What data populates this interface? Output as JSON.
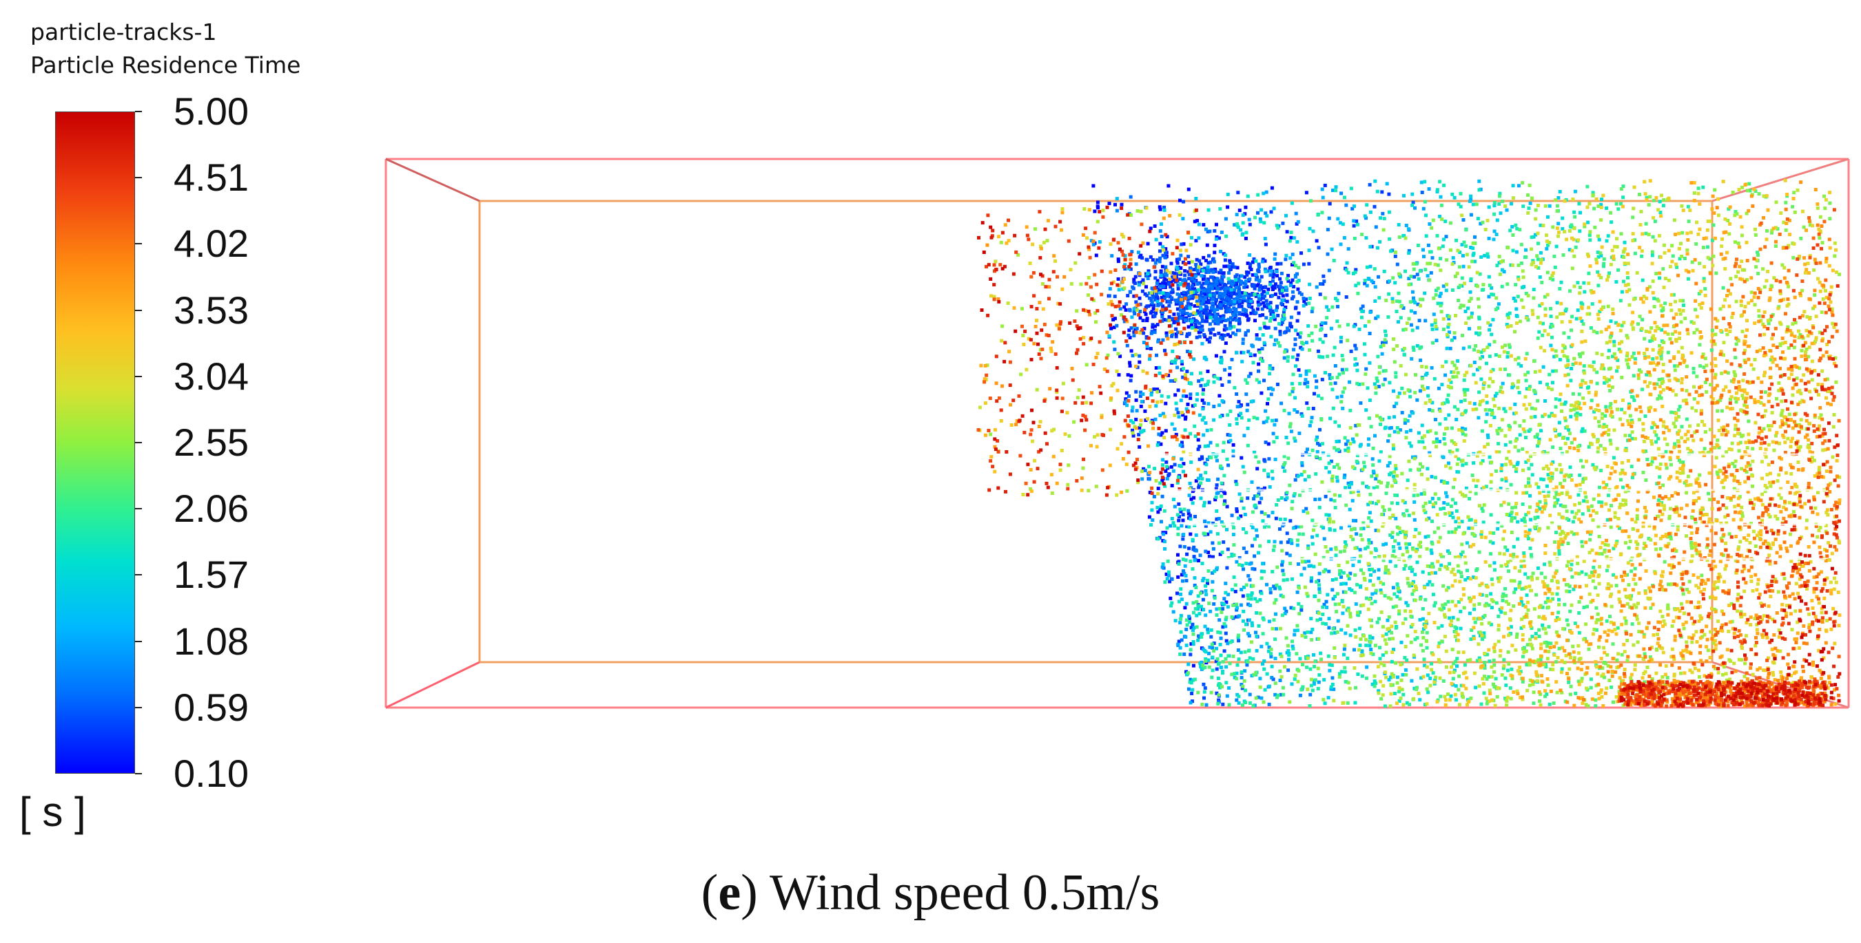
{
  "legend": {
    "title": "particle-tracks-1",
    "variable": "Particle Residence Time",
    "unit": "[ s ]",
    "min": 0.1,
    "max": 5.0,
    "ticks": [
      "5.00",
      "4.51",
      "4.02",
      "3.53",
      "3.04",
      "2.55",
      "2.06",
      "1.57",
      "1.08",
      "0.59",
      "0.10"
    ],
    "colormap_stops": [
      "#0000ff",
      "#0070ff",
      "#00b8ff",
      "#00e0d0",
      "#30f090",
      "#90f040",
      "#d8e030",
      "#ffc020",
      "#ff8a10",
      "#f04010",
      "#c80000"
    ]
  },
  "domain_box": {
    "outer_color": "#ff7f86",
    "inner_color": "#f0a060"
  },
  "caption": {
    "letter": "e",
    "open_paren": "(",
    "close_paren": ")",
    "text": " Wind speed 0.5m/s"
  }
}
